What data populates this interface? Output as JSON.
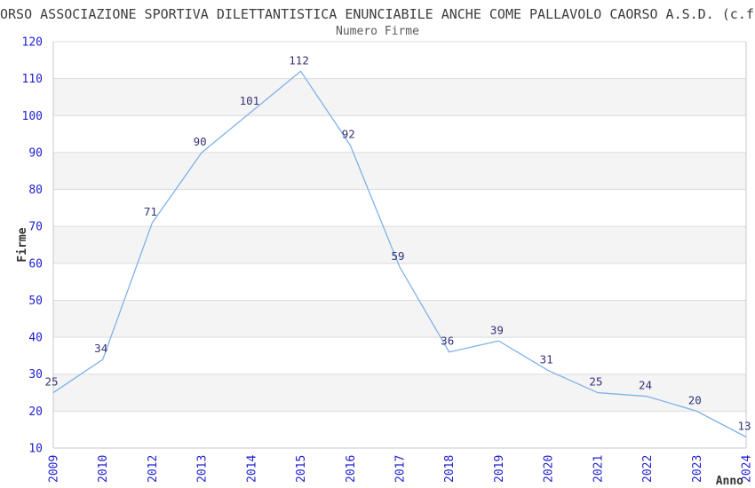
{
  "page": {
    "title": "ORSO ASSOCIAZIONE SPORTIVA DILETTANTISTICA ENUNCIABILE ANCHE COME PALLAVOLO CAORSO A.S.D. (c.f.",
    "subtitle": "Numero Firme"
  },
  "chart_data": {
    "type": "line",
    "title": "Numero Firme",
    "categories": [
      "2009",
      "2010",
      "2012",
      "2013",
      "2014",
      "2015",
      "2016",
      "2017",
      "2018",
      "2019",
      "2020",
      "2021",
      "2022",
      "2023",
      "2024"
    ],
    "values": [
      25,
      34,
      71,
      90,
      101,
      112,
      92,
      59,
      36,
      39,
      31,
      25,
      24,
      20,
      13
    ],
    "xlabel": "Anno",
    "ylabel": "Firme",
    "ylim": [
      10,
      120
    ],
    "ytick_step": 10,
    "yticks": [
      10,
      20,
      30,
      40,
      50,
      60,
      70,
      80,
      90,
      100,
      110,
      120
    ],
    "grid": true,
    "legend_position": "none",
    "band_ranges": [
      [
        20,
        30
      ],
      [
        40,
        50
      ],
      [
        60,
        70
      ],
      [
        80,
        90
      ],
      [
        100,
        110
      ]
    ],
    "colors": {
      "line": "#7fb1e8",
      "tick_label": "#2121cf",
      "data_label": "#333377",
      "band": "#f4f4f4",
      "grid": "#dcdcdc",
      "axis": "#c9c9c9",
      "title": "#3d3d3d",
      "subtitle": "#5a5a5a",
      "axis_title": "#333333"
    }
  }
}
